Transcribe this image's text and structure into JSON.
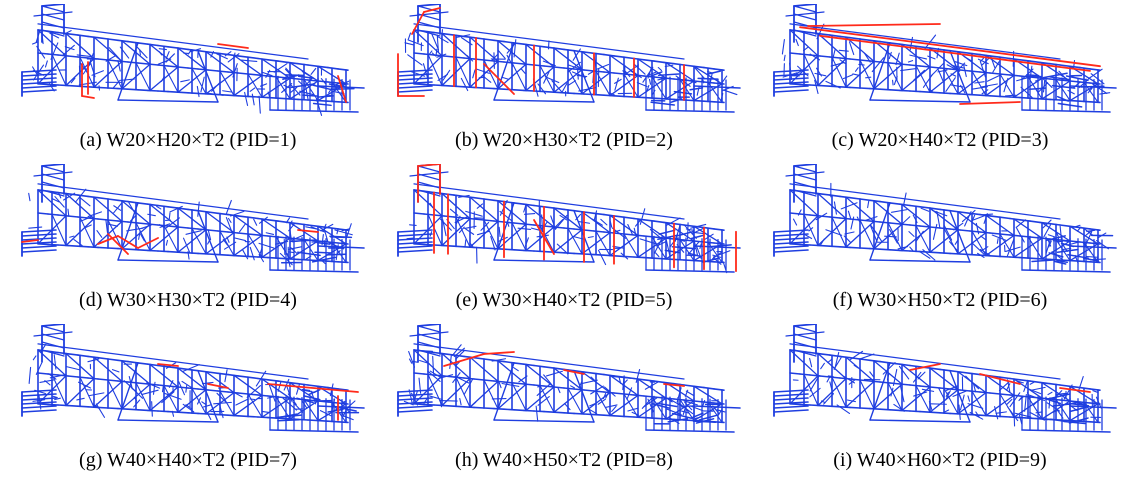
{
  "colors": {
    "structure": "#1f3ee0",
    "highlight": "#ff2a1a",
    "background": "#ffffff"
  },
  "panels": [
    {
      "caption": "(a) W20×H20×T2 (PID=1)",
      "highlight": "bottom-left"
    },
    {
      "caption": "(b) W20×H30×T2 (PID=2)",
      "highlight": "left-and-middle-posts"
    },
    {
      "caption": "(c) W20×H40×T2 (PID=3)",
      "highlight": "top-longitudinal-rails"
    },
    {
      "caption": "(d) W30×H30×T2 (PID=4)",
      "highlight": "center-left-cluster"
    },
    {
      "caption": "(e) W30×H40×T2 (PID=5)",
      "highlight": "tower-and-vertical-posts"
    },
    {
      "caption": "(f) W30×H50×T2 (PID=6)",
      "highlight": "none"
    },
    {
      "caption": "(g) W40×H40×T2 (PID=7)",
      "highlight": "middle-and-right-top"
    },
    {
      "caption": "(h) W40×H50×T2 (PID=8)",
      "highlight": "top-left-diagonal"
    },
    {
      "caption": "(i) W40×H60×T2 (PID=9)",
      "highlight": "right-top-diagonal"
    }
  ]
}
